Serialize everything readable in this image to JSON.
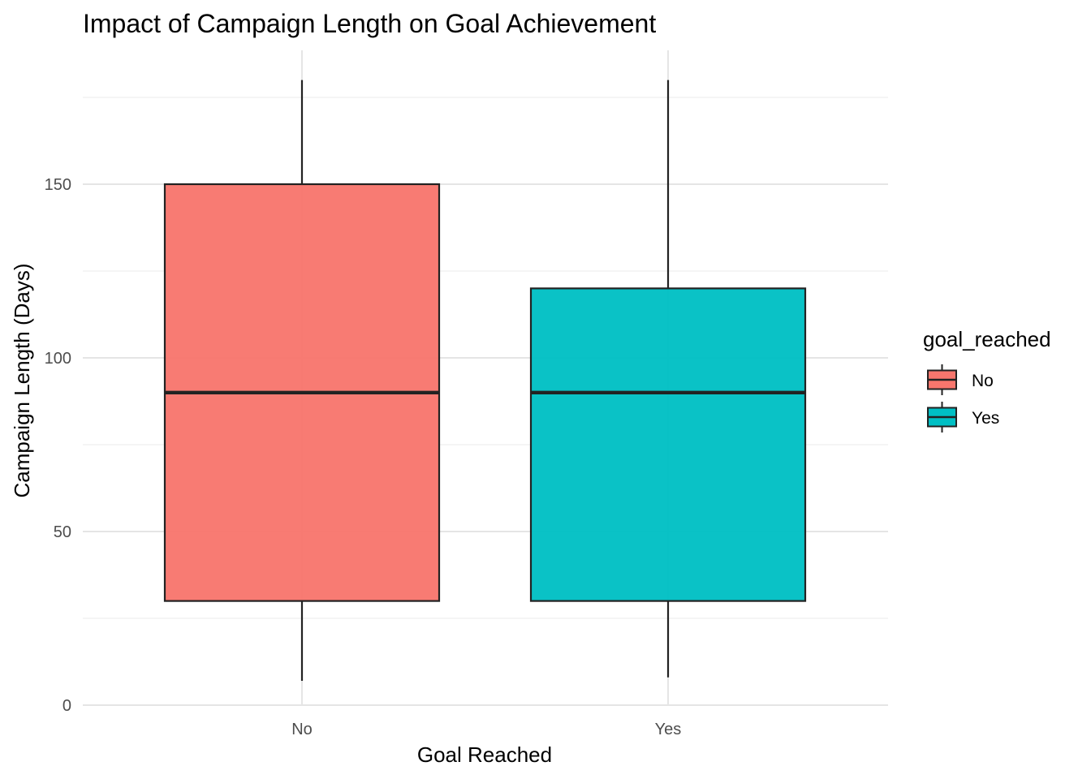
{
  "chart_data": {
    "type": "boxplot",
    "title": "Impact of Campaign Length on Goal Achievement",
    "xlabel": "Goal Reached",
    "ylabel": "Campaign Length (Days)",
    "categories": [
      "No",
      "Yes"
    ],
    "ylim": [
      0,
      180
    ],
    "yticks": [
      0,
      50,
      100,
      150
    ],
    "grid": true,
    "legend": {
      "title": "goal_reached",
      "placement": "right",
      "entries": [
        "No",
        "Yes"
      ]
    },
    "colors": {
      "No": "#F8766D",
      "Yes": "#00BFC4"
    },
    "boxes": [
      {
        "category": "No",
        "min": 7,
        "q1": 30,
        "median": 90,
        "q3": 150,
        "max": 180
      },
      {
        "category": "Yes",
        "min": 8,
        "q1": 30,
        "median": 90,
        "q3": 120,
        "max": 180
      }
    ]
  }
}
